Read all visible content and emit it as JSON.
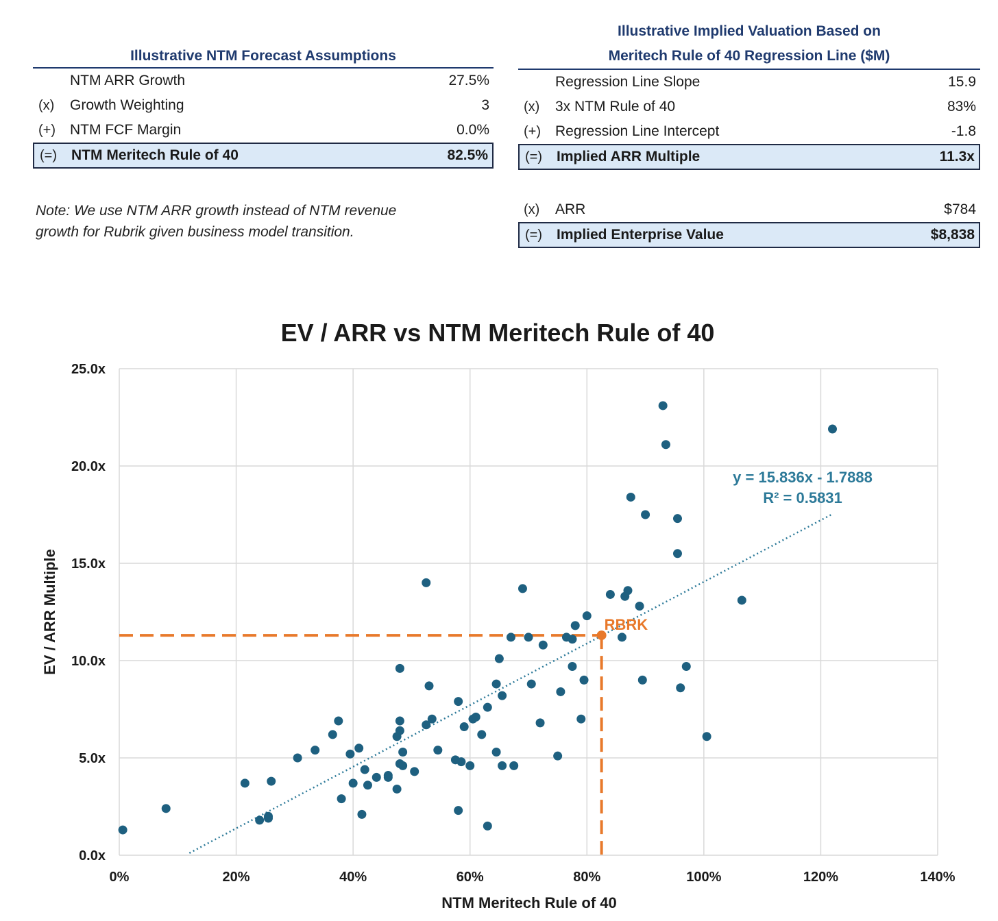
{
  "left_panel": {
    "title": "Illustrative NTM Forecast Assumptions",
    "rows": [
      {
        "op": "",
        "label": "NTM ARR Growth",
        "value": "27.5%"
      },
      {
        "op": "(x)",
        "label": "Growth Weighting",
        "value": "3"
      },
      {
        "op": "(+)",
        "label": "NTM FCF Margin",
        "value": "0.0%"
      },
      {
        "op": "(=)",
        "label": "NTM Meritech Rule of 40",
        "value": "82.5%"
      }
    ],
    "note_line1": "Note: We use NTM ARR growth instead of NTM revenue",
    "note_line2": "growth for Rubrik given business model transition."
  },
  "right_panel": {
    "title_line1": "Illustrative Implied Valuation Based on",
    "title_line2": "Meritech Rule of 40 Regression Line ($M)",
    "rows": [
      {
        "op": "",
        "label": "Regression Line Slope",
        "value": "15.9"
      },
      {
        "op": "(x)",
        "label": "3x NTM Rule of 40",
        "value": "83%"
      },
      {
        "op": "(+)",
        "label": "Regression Line Intercept",
        "value": "-1.8"
      },
      {
        "op": "(=)",
        "label": "Implied ARR Multiple",
        "value": "11.3x"
      }
    ],
    "arr_row": {
      "op": "(x)",
      "label": "ARR",
      "value": "$784"
    },
    "ev_row": {
      "op": "(=)",
      "label": "Implied Enterprise Value",
      "value": "$8,838"
    }
  },
  "chart_data": {
    "type": "scatter",
    "title": "EV / ARR vs NTM Meritech Rule of 40",
    "xlabel": "NTM Meritech Rule of 40",
    "ylabel": "EV / ARR Multiple",
    "xlim": [
      0,
      140
    ],
    "ylim": [
      0,
      25
    ],
    "x_ticks": [
      "0%",
      "20%",
      "40%",
      "60%",
      "80%",
      "100%",
      "120%",
      "140%"
    ],
    "y_ticks": [
      "0.0x",
      "5.0x",
      "10.0x",
      "15.0x",
      "20.0x",
      "25.0x"
    ],
    "grid": true,
    "colors": {
      "points": "#1e6080",
      "highlight": "#e8792b",
      "trendline": "#2d7a99",
      "grid": "#d9d9d9"
    },
    "trendline": {
      "slope": 15.836,
      "intercept": -1.7888,
      "x_range": [
        12,
        122
      ],
      "equation": "y = 15.836x  - 1.7888",
      "r2": "R² = 0.5831"
    },
    "highlight": {
      "label": "RBRK",
      "x": 82.5,
      "y": 11.3
    },
    "points": [
      [
        0.6,
        1.3
      ],
      [
        8,
        2.4
      ],
      [
        21.5,
        3.7
      ],
      [
        24,
        1.8
      ],
      [
        25.5,
        1.9
      ],
      [
        25.5,
        2.0
      ],
      [
        26,
        3.8
      ],
      [
        30.5,
        5.0
      ],
      [
        33.5,
        5.4
      ],
      [
        36.5,
        6.2
      ],
      [
        37.5,
        6.9
      ],
      [
        38,
        2.9
      ],
      [
        39.5,
        5.2
      ],
      [
        40,
        3.7
      ],
      [
        41,
        5.5
      ],
      [
        41.5,
        2.1
      ],
      [
        42,
        4.4
      ],
      [
        42.5,
        3.6
      ],
      [
        44,
        4.0
      ],
      [
        46,
        4.0
      ],
      [
        46,
        4.1
      ],
      [
        47.5,
        3.4
      ],
      [
        47.5,
        6.1
      ],
      [
        48,
        6.4
      ],
      [
        48,
        6.9
      ],
      [
        48,
        9.6
      ],
      [
        48,
        4.7
      ],
      [
        48.5,
        4.6
      ],
      [
        48.5,
        5.3
      ],
      [
        50.5,
        4.3
      ],
      [
        52.5,
        6.7
      ],
      [
        52.5,
        14.0
      ],
      [
        53,
        8.7
      ],
      [
        53.5,
        7.0
      ],
      [
        54.5,
        5.4
      ],
      [
        57.5,
        4.9
      ],
      [
        58,
        7.9
      ],
      [
        58.5,
        4.8
      ],
      [
        58,
        2.3
      ],
      [
        59,
        6.6
      ],
      [
        60,
        4.6
      ],
      [
        60.5,
        7.0
      ],
      [
        61,
        7.1
      ],
      [
        62,
        6.2
      ],
      [
        63,
        7.6
      ],
      [
        63,
        1.5
      ],
      [
        64.5,
        8.8
      ],
      [
        64.5,
        5.3
      ],
      [
        65,
        10.1
      ],
      [
        65.5,
        4.6
      ],
      [
        65.5,
        8.2
      ],
      [
        67,
        11.2
      ],
      [
        67.5,
        4.6
      ],
      [
        69,
        13.7
      ],
      [
        70,
        11.2
      ],
      [
        70.5,
        8.8
      ],
      [
        72,
        6.8
      ],
      [
        72.5,
        10.8
      ],
      [
        75,
        5.1
      ],
      [
        75.5,
        8.4
      ],
      [
        76.5,
        11.2
      ],
      [
        77.5,
        9.7
      ],
      [
        77.5,
        11.1
      ],
      [
        78,
        11.8
      ],
      [
        79,
        7.0
      ],
      [
        79.5,
        9.0
      ],
      [
        80,
        12.3
      ],
      [
        84,
        13.4
      ],
      [
        86,
        11.2
      ],
      [
        86.5,
        13.3
      ],
      [
        87,
        13.6
      ],
      [
        87.5,
        18.4
      ],
      [
        89,
        12.8
      ],
      [
        89.5,
        9.0
      ],
      [
        90,
        17.5
      ],
      [
        93,
        23.1
      ],
      [
        93.5,
        21.1
      ],
      [
        95.5,
        17.3
      ],
      [
        95.5,
        15.5
      ],
      [
        96,
        8.6
      ],
      [
        97,
        9.7
      ],
      [
        100.5,
        6.1
      ],
      [
        106.5,
        13.1
      ],
      [
        122,
        21.9
      ]
    ]
  }
}
